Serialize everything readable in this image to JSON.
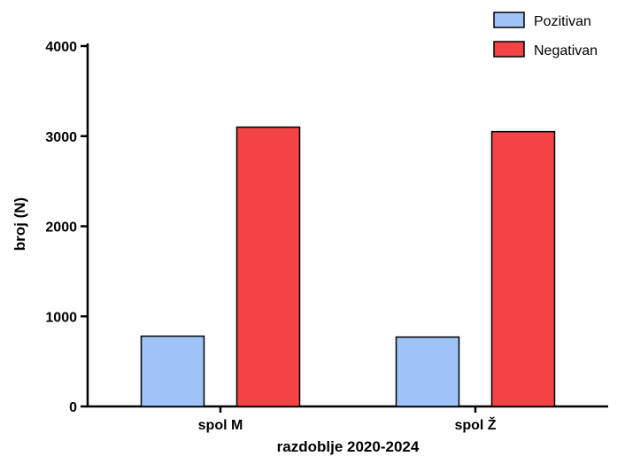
{
  "chart_data": {
    "type": "bar",
    "categories": [
      "spol M",
      "spol Ž"
    ],
    "series": [
      {
        "name": "Pozitivan",
        "values": [
          780,
          770
        ],
        "color": "#9DC3F7"
      },
      {
        "name": "Negativan",
        "values": [
          3100,
          3050
        ],
        "color": "#F24444"
      }
    ],
    "xlabel": "razdoblje 2020-2024",
    "ylabel": "broj (N)",
    "ylim": [
      0,
      4000
    ],
    "yticks": [
      0,
      1000,
      2000,
      3000,
      4000
    ],
    "grid": false,
    "legend_position": "top-right"
  }
}
